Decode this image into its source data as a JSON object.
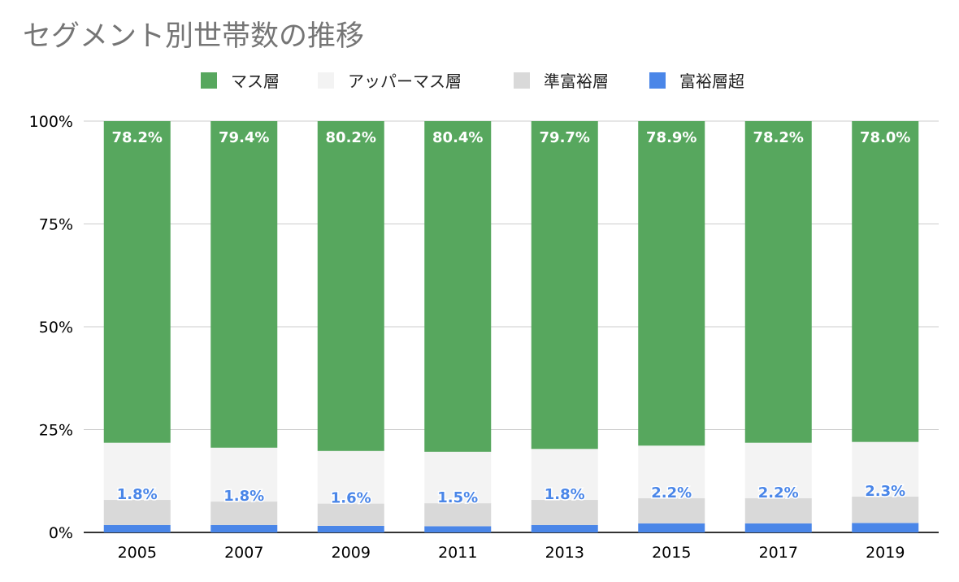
{
  "chart_data": {
    "type": "bar",
    "stacked": true,
    "percent_stacked": true,
    "title": "セグメント別世帯数の推移",
    "categories": [
      "2005",
      "2007",
      "2009",
      "2011",
      "2013",
      "2015",
      "2017",
      "2019"
    ],
    "series": [
      {
        "name": "富裕層超",
        "color": "#4a86e8",
        "values": [
          1.8,
          1.8,
          1.6,
          1.5,
          1.8,
          2.2,
          2.2,
          2.3
        ],
        "labels": [
          "1.8%",
          "1.8%",
          "1.6%",
          "1.5%",
          "1.8%",
          "2.2%",
          "2.2%",
          "2.3%"
        ]
      },
      {
        "name": "準富裕層",
        "color": "#d9d9d9",
        "values": [
          6.1,
          5.7,
          5.4,
          5.6,
          6.1,
          6.1,
          6.1,
          6.4
        ]
      },
      {
        "name": "アッパーマス層",
        "color": "#f3f3f3",
        "values": [
          13.9,
          13.1,
          12.8,
          12.5,
          12.4,
          12.8,
          13.5,
          13.3
        ]
      },
      {
        "name": "マス層",
        "color": "#57a75e",
        "values": [
          78.2,
          79.4,
          80.2,
          80.4,
          79.7,
          78.9,
          78.2,
          78.0
        ],
        "labels": [
          "78.2%",
          "79.4%",
          "80.2%",
          "80.4%",
          "79.7%",
          "78.9%",
          "78.2%",
          "78.0%"
        ]
      }
    ],
    "legend_order": [
      "マス層",
      "アッパーマス層",
      "準富裕層",
      "富裕層超"
    ],
    "legend_position": "top",
    "yticks": [
      "0%",
      "25%",
      "50%",
      "75%",
      "100%"
    ],
    "ylim": [
      0,
      100
    ],
    "grid": true
  }
}
